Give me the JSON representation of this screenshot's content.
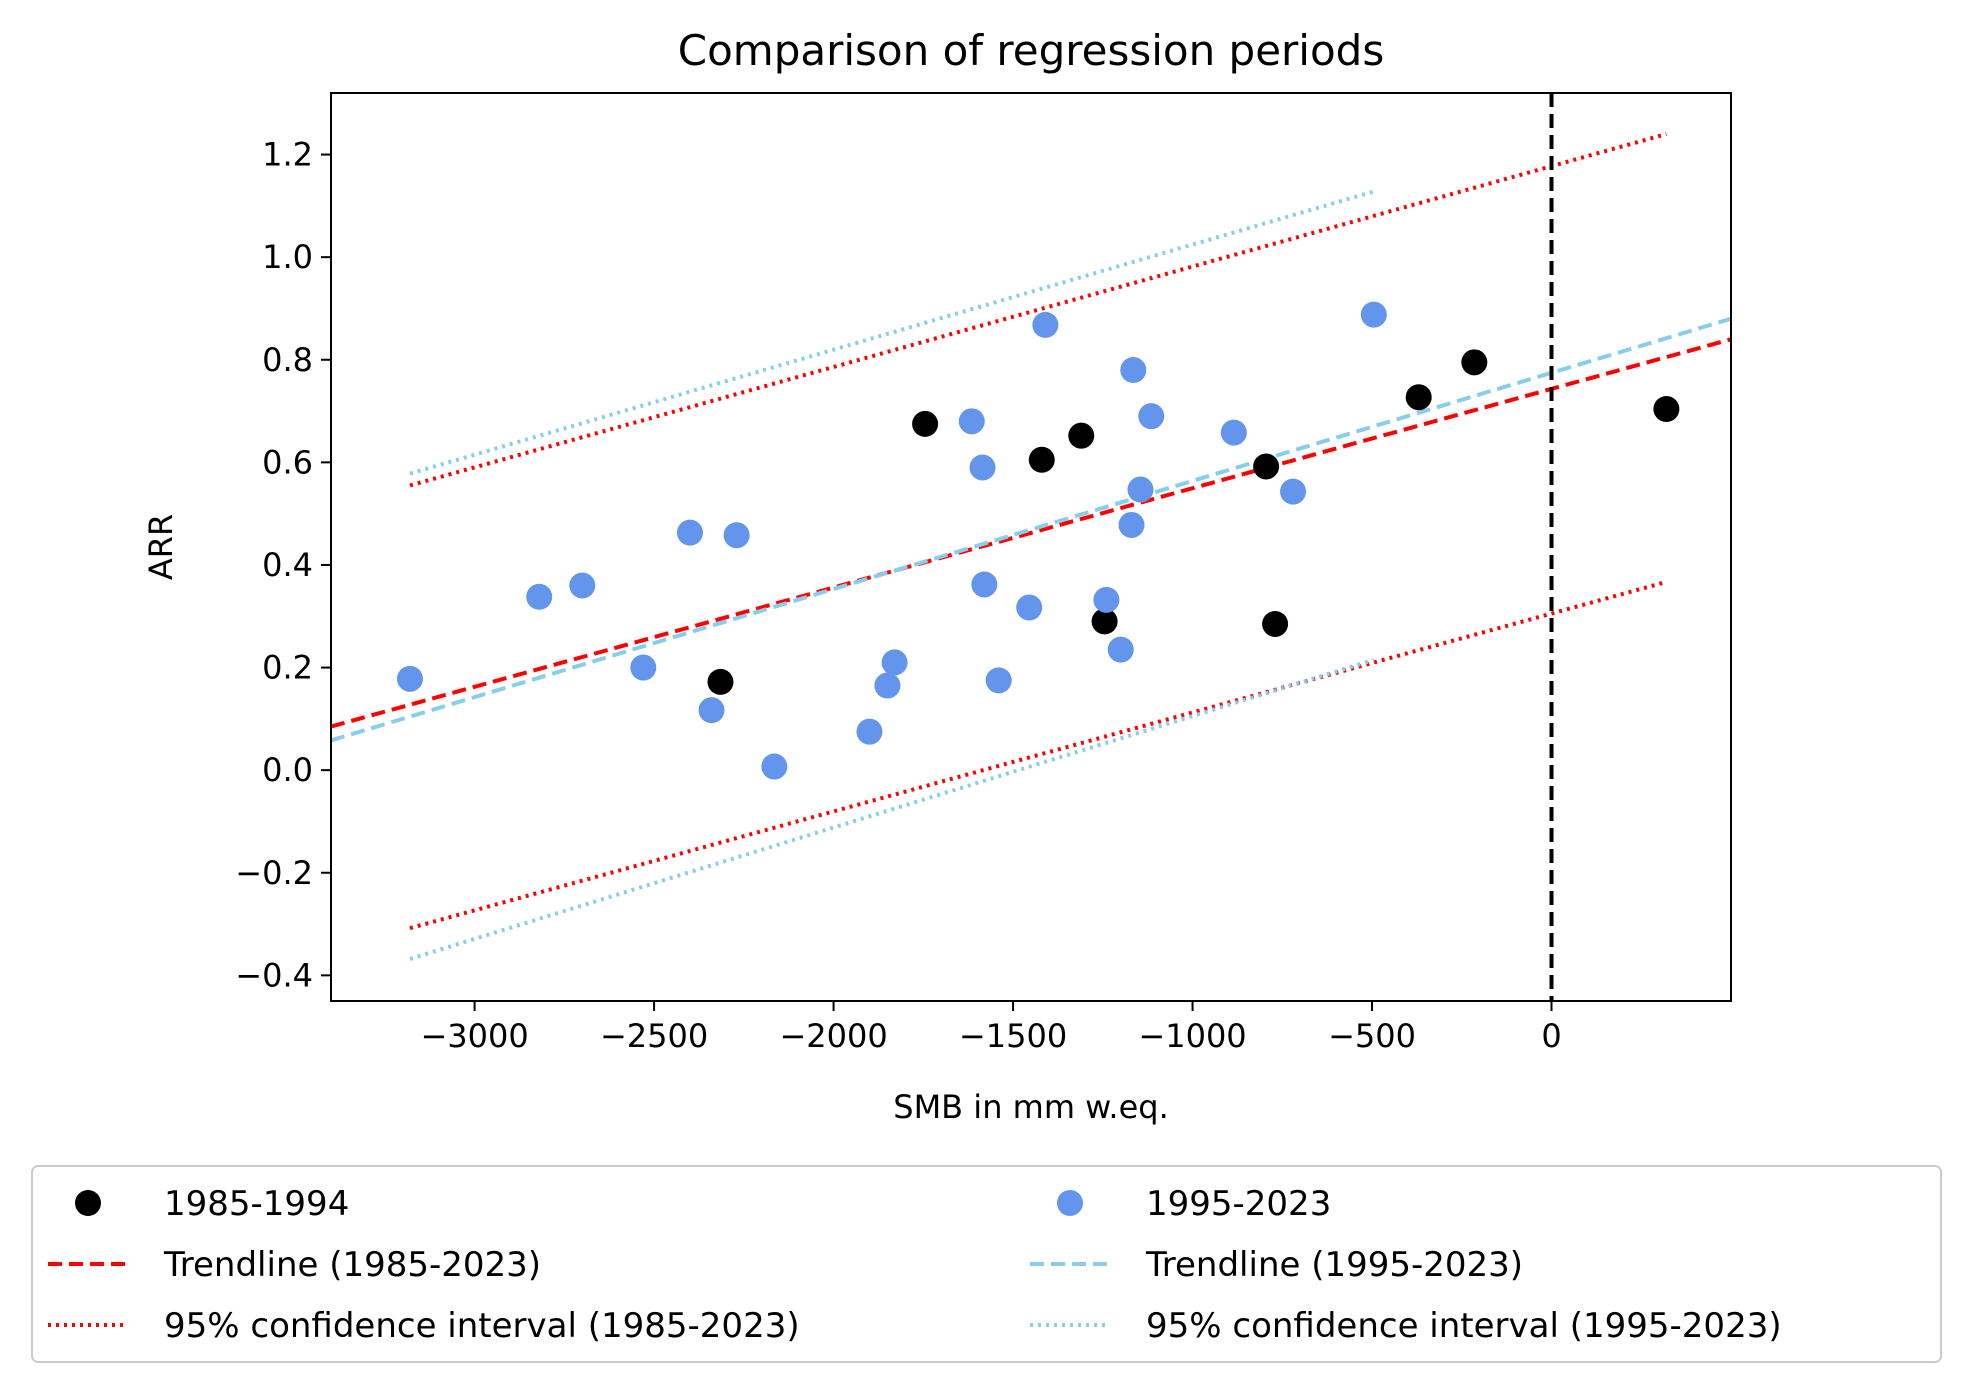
{
  "chart_data": {
    "type": "scatter",
    "title": "Comparison of regression periods",
    "xlabel": "SMB in mm w.eq.",
    "ylabel": "ARR",
    "xlim": [
      -3400,
      500
    ],
    "ylim": [
      -0.45,
      1.32
    ],
    "xticks": [
      -3000,
      -2500,
      -2000,
      -1500,
      -1000,
      -500,
      0
    ],
    "xtick_labels": [
      "−3000",
      "−2500",
      "−2000",
      "−1500",
      "−1000",
      "−500",
      "0"
    ],
    "yticks": [
      -0.4,
      -0.2,
      0.0,
      0.2,
      0.4,
      0.6,
      0.8,
      1.0,
      1.2
    ],
    "ytick_labels": [
      "−0.4",
      "−0.2",
      "0.0",
      "0.2",
      "0.4",
      "0.6",
      "0.8",
      "1.0",
      "1.2"
    ],
    "grid": false,
    "reference_line": {
      "x": 0,
      "style": "dashed",
      "color": "#000000"
    },
    "series": [
      {
        "name": "1985-1994",
        "kind": "scatter",
        "color": "#000000",
        "points": [
          {
            "x": -2315,
            "y": 0.172
          },
          {
            "x": -1745,
            "y": 0.675
          },
          {
            "x": -1420,
            "y": 0.605
          },
          {
            "x": -1310,
            "y": 0.652
          },
          {
            "x": -1245,
            "y": 0.29
          },
          {
            "x": -795,
            "y": 0.592
          },
          {
            "x": -770,
            "y": 0.285
          },
          {
            "x": -370,
            "y": 0.727
          },
          {
            "x": -215,
            "y": 0.795
          },
          {
            "x": 320,
            "y": 0.704
          }
        ]
      },
      {
        "name": "1995-2023",
        "kind": "scatter",
        "color": "#6495ED",
        "points": [
          {
            "x": -3180,
            "y": 0.178
          },
          {
            "x": -2820,
            "y": 0.338
          },
          {
            "x": -2700,
            "y": 0.36
          },
          {
            "x": -2530,
            "y": 0.2
          },
          {
            "x": -2400,
            "y": 0.463
          },
          {
            "x": -2340,
            "y": 0.117
          },
          {
            "x": -2270,
            "y": 0.458
          },
          {
            "x": -2165,
            "y": 0.007
          },
          {
            "x": -1900,
            "y": 0.075
          },
          {
            "x": -1850,
            "y": 0.165
          },
          {
            "x": -1830,
            "y": 0.21
          },
          {
            "x": -1615,
            "y": 0.68
          },
          {
            "x": -1585,
            "y": 0.59
          },
          {
            "x": -1580,
            "y": 0.362
          },
          {
            "x": -1540,
            "y": 0.175
          },
          {
            "x": -1455,
            "y": 0.317
          },
          {
            "x": -1410,
            "y": 0.868
          },
          {
            "x": -1240,
            "y": 0.332
          },
          {
            "x": -1200,
            "y": 0.235
          },
          {
            "x": -1170,
            "y": 0.478
          },
          {
            "x": -1165,
            "y": 0.78
          },
          {
            "x": -1145,
            "y": 0.547
          },
          {
            "x": -1115,
            "y": 0.69
          },
          {
            "x": -885,
            "y": 0.658
          },
          {
            "x": -720,
            "y": 0.543
          },
          {
            "x": -495,
            "y": 0.888
          }
        ]
      },
      {
        "name": "Trendline (1985-2023)",
        "kind": "line",
        "style": "dashed",
        "color": "#FF0000",
        "points": [
          {
            "x": -3400,
            "y": 0.085
          },
          {
            "x": 500,
            "y": 0.84
          }
        ]
      },
      {
        "name": "Trendline (1995-2023)",
        "kind": "line",
        "style": "dashed",
        "color": "#87CEEB",
        "points": [
          {
            "x": -3400,
            "y": 0.058
          },
          {
            "x": 500,
            "y": 0.88
          }
        ]
      },
      {
        "name": "95% confidence interval (1985-2023)",
        "kind": "line",
        "style": "dotted",
        "color": "#FF0000",
        "segments": [
          [
            {
              "x": -3180,
              "y": 0.555
            },
            {
              "x": 320,
              "y": 1.24
            }
          ],
          [
            {
              "x": -3180,
              "y": -0.308
            },
            {
              "x": 320,
              "y": 0.367
            }
          ]
        ]
      },
      {
        "name": "95% confidence interval (1995-2023)",
        "kind": "line",
        "style": "dotted",
        "color": "#87CEEB",
        "segments": [
          [
            {
              "x": -3180,
              "y": 0.578
            },
            {
              "x": -495,
              "y": 1.128
            }
          ],
          [
            {
              "x": -3180,
              "y": -0.368
            },
            {
              "x": -495,
              "y": 0.215
            }
          ]
        ]
      }
    ],
    "legend": {
      "placement": "below",
      "columns": 2,
      "entries": [
        {
          "label": "1985-1994",
          "marker": "dot",
          "color": "#000000"
        },
        {
          "label": "1995-2023",
          "marker": "dot",
          "color": "#6495ED"
        },
        {
          "label": "Trendline (1985-2023)",
          "marker": "dashed",
          "color": "#FF0000"
        },
        {
          "label": "Trendline (1995-2023)",
          "marker": "dashed",
          "color": "#87CEEB"
        },
        {
          "label": "95% confidence interval (1985-2023)",
          "marker": "dotted",
          "color": "#FF0000"
        },
        {
          "label": "95% confidence interval (1995-2023)",
          "marker": "dotted",
          "color": "#87CEEB"
        }
      ]
    }
  }
}
